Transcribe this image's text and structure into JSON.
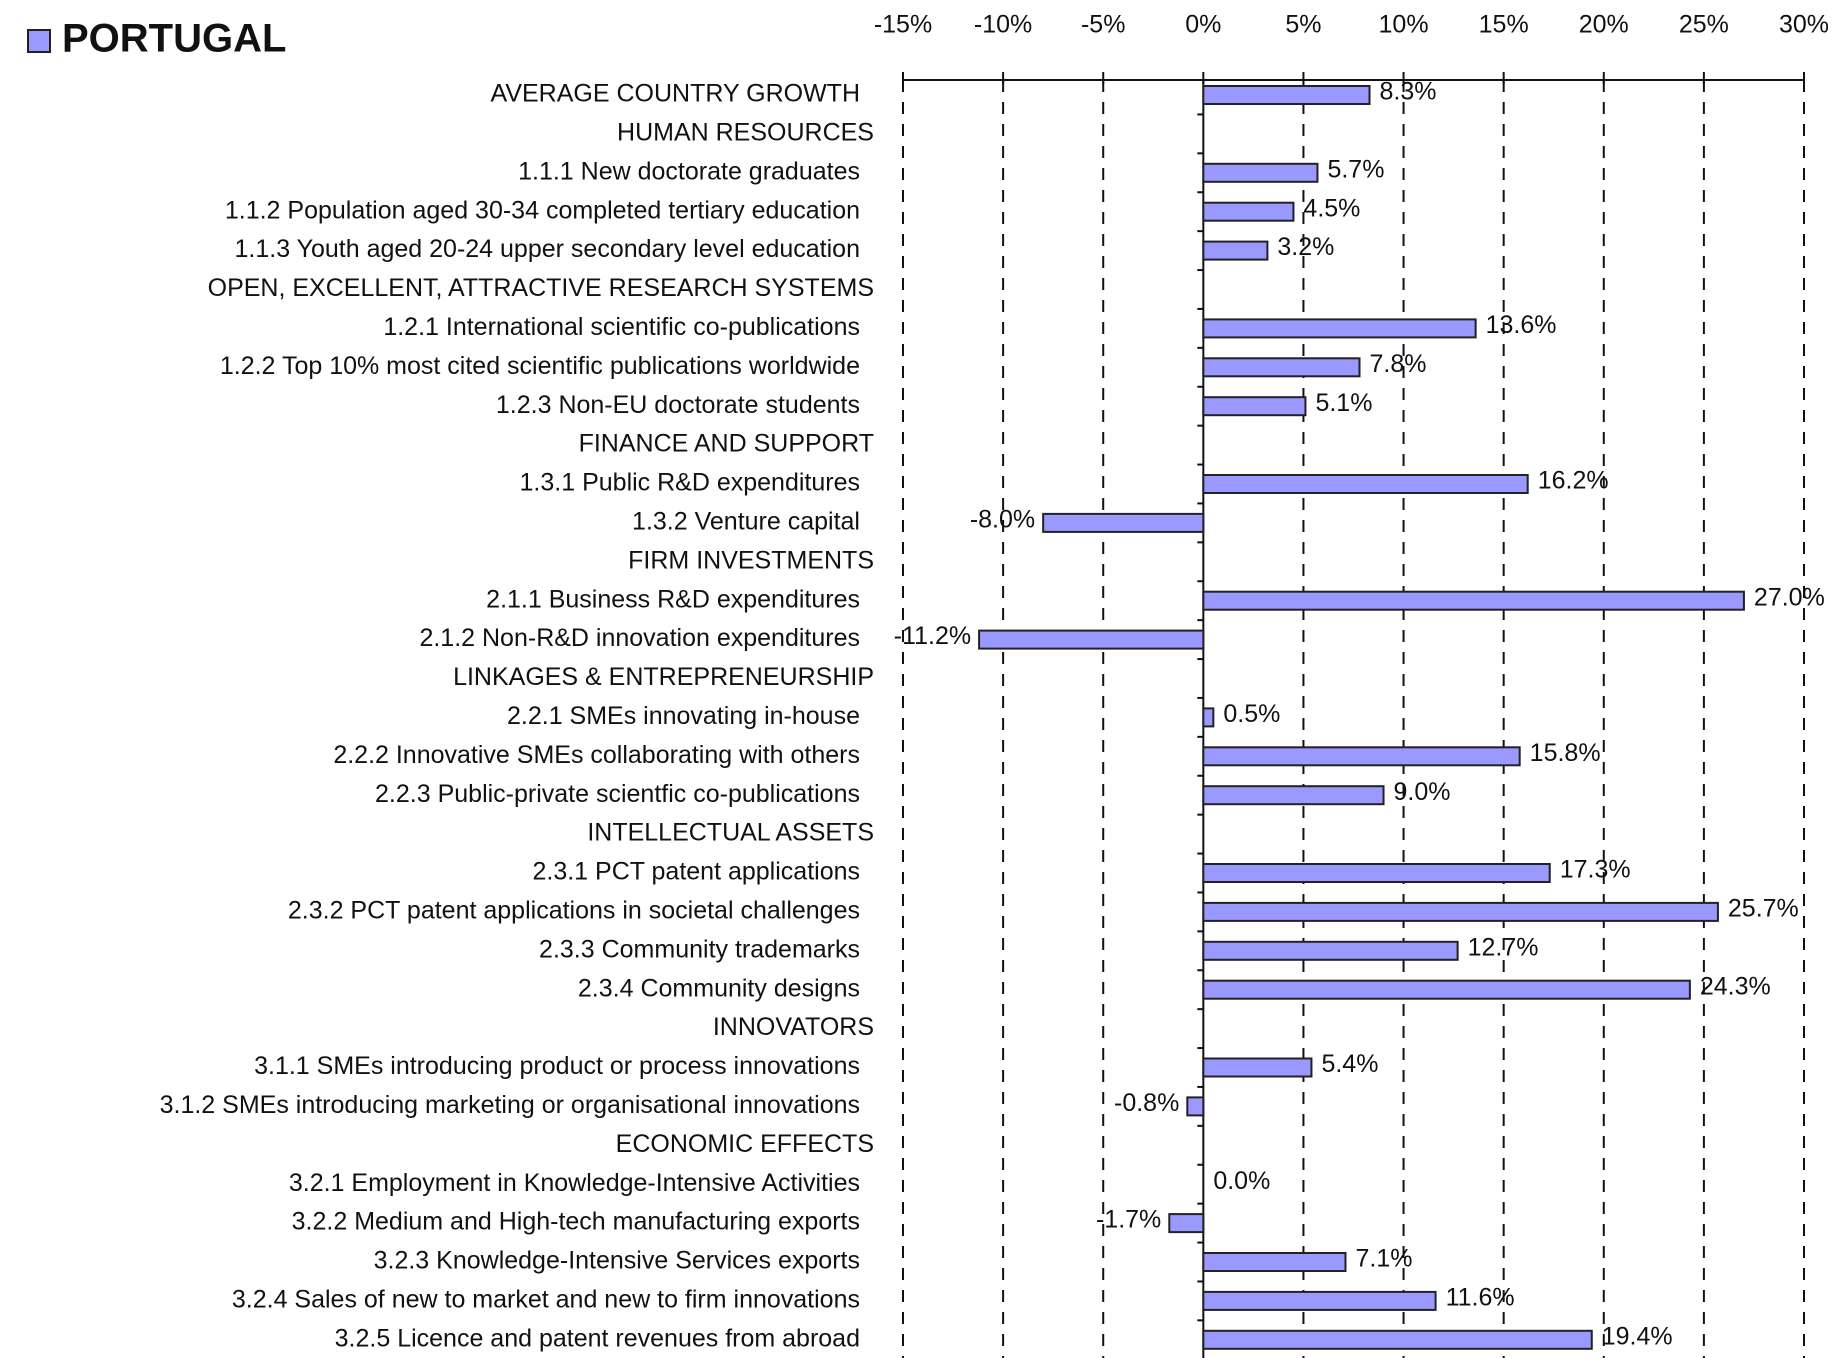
{
  "chart_data": {
    "type": "bar",
    "orientation": "horizontal",
    "categories": [
      "AVERAGE COUNTRY GROWTH",
      "HUMAN RESOURCES",
      "1.1.1 New doctorate graduates",
      "1.1.2 Population aged 30-34 completed tertiary education",
      "1.1.3 Youth aged 20-24 upper secondary level education",
      "OPEN, EXCELLENT, ATTRACTIVE RESEARCH SYSTEMS",
      "1.2.1 International scientific co-publications",
      "1.2.2 Top 10% most cited scientific publications worldwide",
      "1.2.3 Non-EU doctorate students",
      "FINANCE AND SUPPORT",
      "1.3.1 Public R&D expenditures",
      "1.3.2 Venture capital",
      "FIRM INVESTMENTS",
      "2.1.1 Business R&D expenditures",
      "2.1.2 Non-R&D innovation expenditures",
      "LINKAGES & ENTREPRENEURSHIP",
      "2.2.1 SMEs innovating in-house",
      "2.2.2 Innovative SMEs collaborating with others",
      "2.2.3 Public-private scientfic co-publications",
      "INTELLECTUAL ASSETS",
      "2.3.1 PCT patent applications",
      "2.3.2 PCT patent applications in societal challenges",
      "2.3.3 Community trademarks",
      "2.3.4 Community designs",
      "INNOVATORS",
      "3.1.1 SMEs introducing product or process innovations",
      "3.1.2 SMEs introducing marketing or organisational innovations",
      "ECONOMIC EFFECTS",
      "3.2.1 Employment in Knowledge-Intensive Activities",
      "3.2.2 Medium and High-tech manufacturing exports",
      "3.2.3 Knowledge-Intensive Services exports",
      "3.2.4 Sales of new to market and new to firm innovations",
      "3.2.5 Licence and patent revenues from abroad"
    ],
    "series": [
      {
        "name": "PORTUGAL",
        "color": "#9999ff",
        "values": [
          8.3,
          null,
          5.7,
          4.5,
          3.2,
          null,
          13.6,
          7.8,
          5.1,
          null,
          16.2,
          -8.0,
          null,
          27.0,
          -11.2,
          null,
          0.5,
          15.8,
          9.0,
          null,
          17.3,
          25.7,
          12.7,
          24.3,
          null,
          5.4,
          -0.8,
          null,
          0.0,
          -1.7,
          7.1,
          11.6,
          19.4
        ],
        "value_labels": [
          "8.3%",
          null,
          "5.7%",
          "4.5%",
          "3.2%",
          null,
          "13.6%",
          "7.8%",
          "5.1%",
          null,
          "16.2%",
          "-8.0%",
          null,
          "27.0%",
          "-11.2%",
          null,
          "0.5%",
          "15.8%",
          "9.0%",
          null,
          "17.3%",
          "25.7%",
          "12.7%",
          "24.3%",
          null,
          "5.4%",
          "-0.8%",
          null,
          "0.0%",
          "-1.7%",
          "7.1%",
          "11.6%",
          "19.4%"
        ]
      }
    ],
    "xlim": [
      -15,
      30
    ],
    "xticks": [
      {
        "value": -15,
        "label": "-15%"
      },
      {
        "value": -10,
        "label": "-10%"
      },
      {
        "value": -5,
        "label": "-5%"
      },
      {
        "value": 0,
        "label": "0%"
      },
      {
        "value": 5,
        "label": "5%"
      },
      {
        "value": 10,
        "label": "10%"
      },
      {
        "value": 15,
        "label": "15%"
      },
      {
        "value": 20,
        "label": "20%"
      },
      {
        "value": 25,
        "label": "25%"
      },
      {
        "value": 30,
        "label": "30%"
      }
    ],
    "grid": true,
    "legend": "top-left"
  }
}
